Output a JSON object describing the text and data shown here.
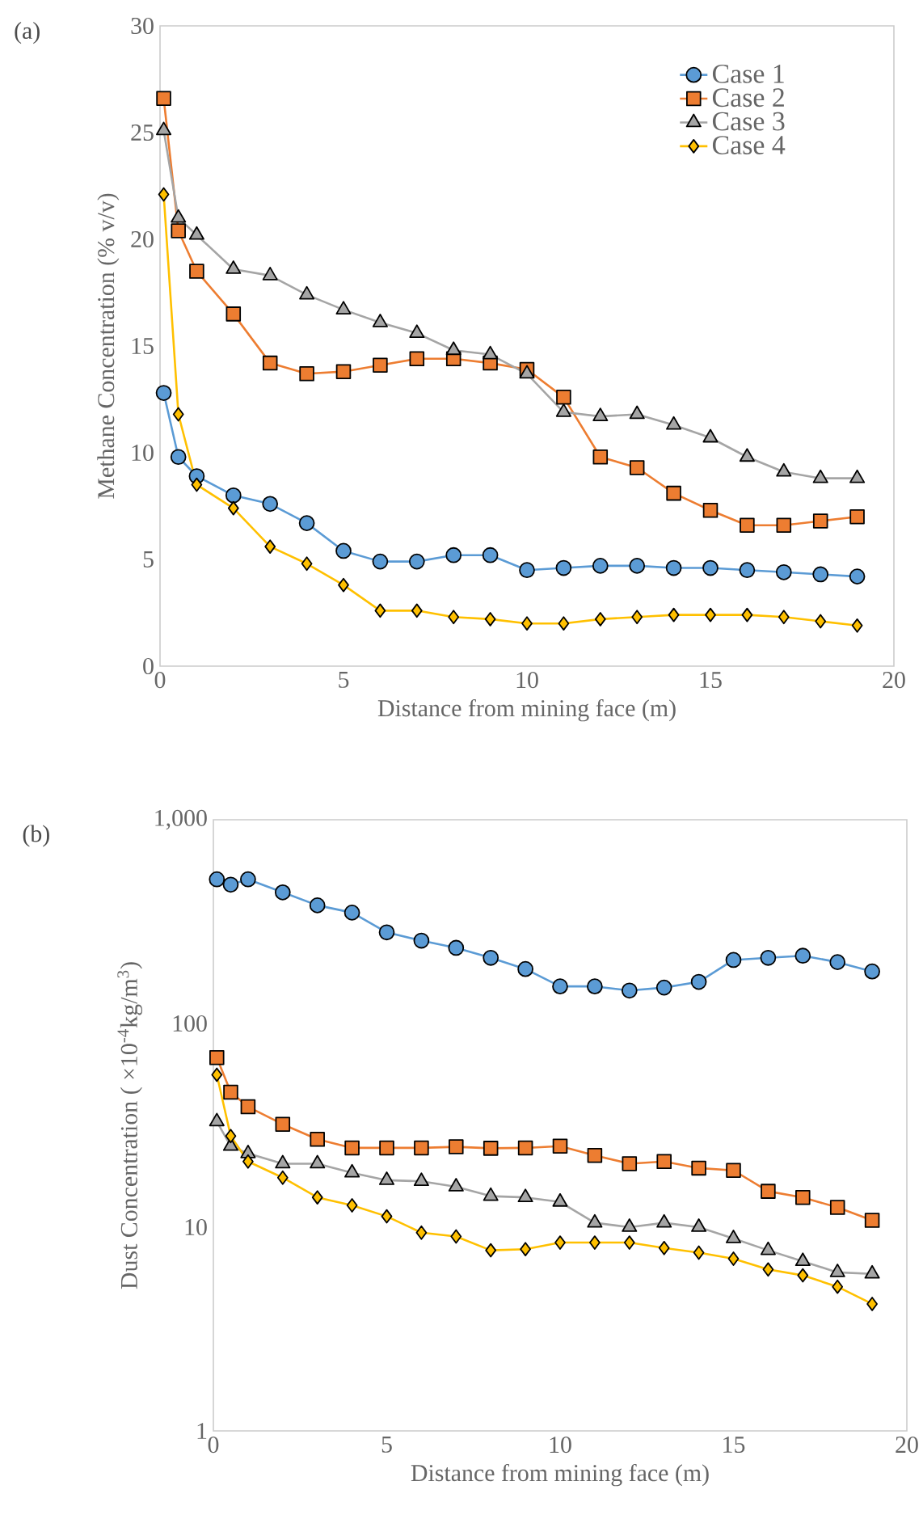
{
  "chart_data": [
    {
      "type": "line",
      "title": "(a)",
      "xlabel": "Distance from mining face (m)",
      "ylabel": "Methane Concentration (% v/v)",
      "x": [
        0.1,
        0.5,
        1,
        2,
        3,
        4,
        5,
        6,
        7,
        8,
        9,
        10,
        11,
        12,
        13,
        14,
        15,
        16,
        17,
        18,
        19
      ],
      "xlim": [
        0,
        20
      ],
      "xticks": [
        0,
        5,
        10,
        15,
        20
      ],
      "ylim": [
        0,
        30
      ],
      "yticks": [
        0,
        5,
        10,
        15,
        20,
        25,
        30
      ],
      "legend": "top right",
      "series": [
        {
          "name": "Case 1",
          "color": "#5b9bd5",
          "marker": "circle",
          "values": [
            12.8,
            9.8,
            8.9,
            8.0,
            7.6,
            6.7,
            5.4,
            4.9,
            4.9,
            5.2,
            5.2,
            4.5,
            4.6,
            4.7,
            4.7,
            4.6,
            4.6,
            4.5,
            4.4,
            4.3,
            4.2
          ]
        },
        {
          "name": "Case 2",
          "color": "#ed7d31",
          "marker": "square",
          "values": [
            26.6,
            20.4,
            18.5,
            16.5,
            14.2,
            13.7,
            13.8,
            14.1,
            14.4,
            14.4,
            14.2,
            13.9,
            12.6,
            9.8,
            9.3,
            8.1,
            7.3,
            6.6,
            6.6,
            6.8,
            7.0
          ]
        },
        {
          "name": "Case 3",
          "color": "#a5a5a5",
          "marker": "triangle",
          "values": [
            25.1,
            21.0,
            20.2,
            18.6,
            18.3,
            17.4,
            16.7,
            16.1,
            15.6,
            14.8,
            14.6,
            13.7,
            11.9,
            11.7,
            11.8,
            11.3,
            10.7,
            9.8,
            9.1,
            8.8,
            8.8
          ]
        },
        {
          "name": "Case 4",
          "color": "#ffc000",
          "marker": "diamond",
          "values": [
            22.1,
            11.8,
            8.5,
            7.4,
            5.6,
            4.8,
            3.8,
            2.6,
            2.6,
            2.3,
            2.2,
            2.0,
            2.0,
            2.2,
            2.3,
            2.4,
            2.4,
            2.4,
            2.3,
            2.1,
            1.9
          ]
        }
      ]
    },
    {
      "type": "line",
      "title": "(b)",
      "xlabel": "Distance from mining face (m)",
      "ylabel": "Dust Concentration ( ×10$^{-4}$kg/m$^{3}$)",
      "x": [
        0.1,
        0.5,
        1,
        2,
        3,
        4,
        5,
        6,
        7,
        8,
        9,
        10,
        11,
        12,
        13,
        14,
        15,
        16,
        17,
        18,
        19
      ],
      "xlim": [
        0,
        20
      ],
      "xticks": [
        0,
        5,
        10,
        15,
        20
      ],
      "ylim": [
        1,
        1000
      ],
      "yticks": [
        1,
        10,
        100,
        {
          "value": 1000,
          "label": "1,000"
        }
      ],
      "log": true,
      "series": [
        {
          "color": "#5b9bd5",
          "marker": "circle",
          "values": [
            510,
            480,
            510,
            440,
            380,
            350,
            280,
            255,
            235,
            210,
            185,
            152,
            152,
            145,
            150,
            160,
            205,
            210,
            215,
            200,
            180
          ]
        },
        {
          "color": "#ed7d31",
          "marker": "square",
          "values": [
            68,
            46,
            39,
            32,
            27,
            24.5,
            24.5,
            24.5,
            24.8,
            24.4,
            24.5,
            25,
            22.5,
            20.5,
            21,
            19.5,
            19,
            15,
            14,
            12.5,
            10.8
          ]
        },
        {
          "color": "#a5a5a5",
          "marker": "triangle",
          "values": [
            33,
            25,
            23,
            20.5,
            20.5,
            18.5,
            17,
            16.8,
            15.8,
            14.2,
            14,
            13.3,
            10.5,
            10,
            10.5,
            10,
            8.8,
            7.7,
            6.8,
            6,
            5.9
          ]
        },
        {
          "color": "#ffc000",
          "marker": "diamond",
          "values": [
            56,
            28,
            21,
            17.5,
            14,
            12.8,
            11.3,
            9.4,
            9,
            7.7,
            7.8,
            8.4,
            8.4,
            8.4,
            7.9,
            7.5,
            7,
            6.2,
            5.8,
            5.1,
            4.2
          ]
        }
      ]
    }
  ]
}
